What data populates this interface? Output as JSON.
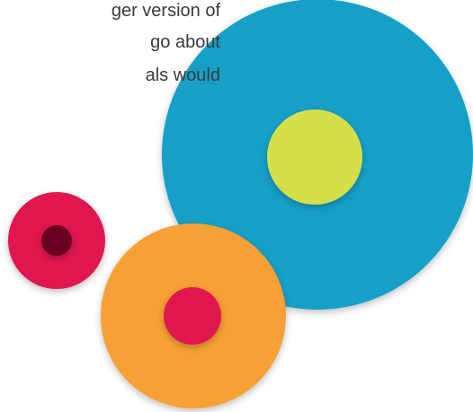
{
  "text_lines": [
    "ger version of",
    "go about",
    "als would"
  ]
}
